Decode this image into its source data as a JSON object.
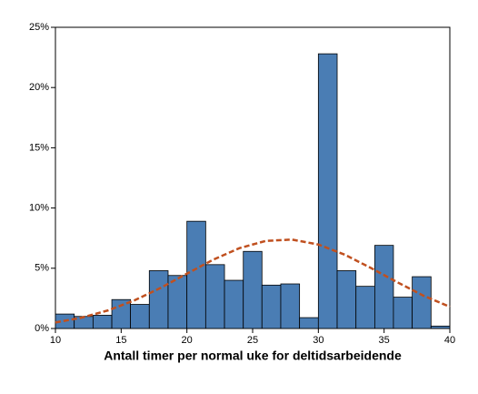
{
  "chart_data": {
    "type": "histogram",
    "x_label": "Antall timer per normal uke for deltidsarbeidende",
    "bins": [
      10,
      11.43,
      12.86,
      14.29,
      15.71,
      17.14,
      18.57,
      20,
      21.43,
      22.86,
      24.29,
      25.71,
      27.14,
      28.57,
      30,
      31.43,
      32.86,
      34.29,
      35.71,
      37.14,
      38.57,
      40
    ],
    "values": [
      1.2,
      1.0,
      1.1,
      2.4,
      2.0,
      4.8,
      4.4,
      8.9,
      5.3,
      4.0,
      6.4,
      3.6,
      3.7,
      0.9,
      22.8,
      4.8,
      3.5,
      6.9,
      2.6,
      4.3,
      0.2
    ],
    "color": "#4a7db4",
    "curve": {
      "x": [
        10,
        12,
        14,
        16,
        18,
        20,
        22,
        24,
        26,
        28,
        30,
        32,
        34,
        36,
        38,
        40
      ],
      "values": [
        0.5,
        0.9,
        1.5,
        2.33,
        3.37,
        4.55,
        5.71,
        6.67,
        7.27,
        7.38,
        6.97,
        6.13,
        5.02,
        3.84,
        2.72,
        1.8
      ],
      "color": "#c0501f"
    },
    "xlim": [
      10,
      40
    ],
    "ylim": [
      0,
      25
    ],
    "xticks": [
      10,
      15,
      20,
      25,
      30,
      35,
      40
    ],
    "yticks": [
      {
        "value": 0,
        "label": "0%"
      },
      {
        "value": 5,
        "label": "5%"
      },
      {
        "value": 10,
        "label": "10%"
      },
      {
        "value": 15,
        "label": "15%"
      },
      {
        "value": 20,
        "label": "20%"
      },
      {
        "value": 25,
        "label": "25%"
      }
    ]
  }
}
